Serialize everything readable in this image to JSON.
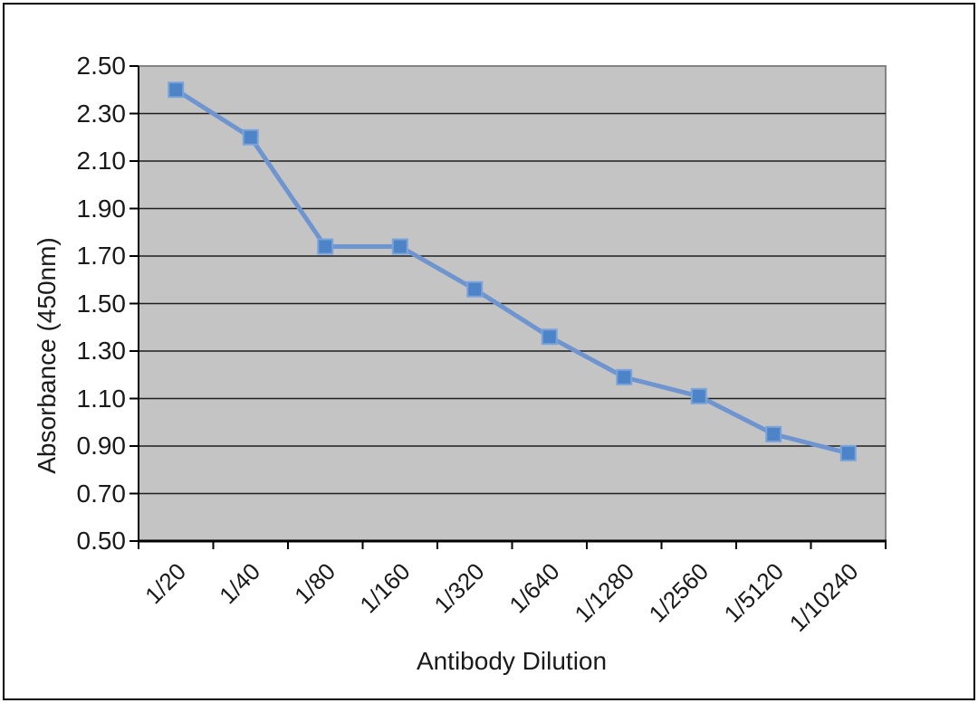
{
  "chart_data": {
    "type": "line",
    "title": "",
    "xlabel": "Antibody Dilution",
    "ylabel": "Absorbance (450nm)",
    "categories": [
      "1/20",
      "1/40",
      "1/80",
      "1/160",
      "1/320",
      "1/640",
      "1/1280",
      "1/2560",
      "1/5120",
      "1/10240"
    ],
    "series": [
      {
        "name": "Absorbance (450nm)",
        "values": [
          2.4,
          2.2,
          1.74,
          1.74,
          1.56,
          1.36,
          1.19,
          1.11,
          0.95,
          0.87
        ]
      }
    ],
    "ylim": [
      0.5,
      2.5
    ],
    "ytick_step": 0.2,
    "ytick_decimals": 2,
    "ytick_labels": [
      "0.50",
      "0.70",
      "0.90",
      "1.10",
      "1.30",
      "1.50",
      "1.70",
      "1.90",
      "2.10",
      "2.30",
      "2.50"
    ],
    "x_label_rotation": -45,
    "grid": true,
    "legend_position": "none",
    "marker": "square",
    "colors": {
      "line": "#6e95d0",
      "marker_fill": "#4d84c7",
      "marker_stroke": "#7aa3dc",
      "plot_bg": "#c4c4c4",
      "plot_border": "#848484",
      "gridline": "#1f1f1f",
      "axis": "#000000",
      "text": "#1a1a1a",
      "frame_border": "#000000",
      "page_bg": "#ffffff"
    }
  }
}
